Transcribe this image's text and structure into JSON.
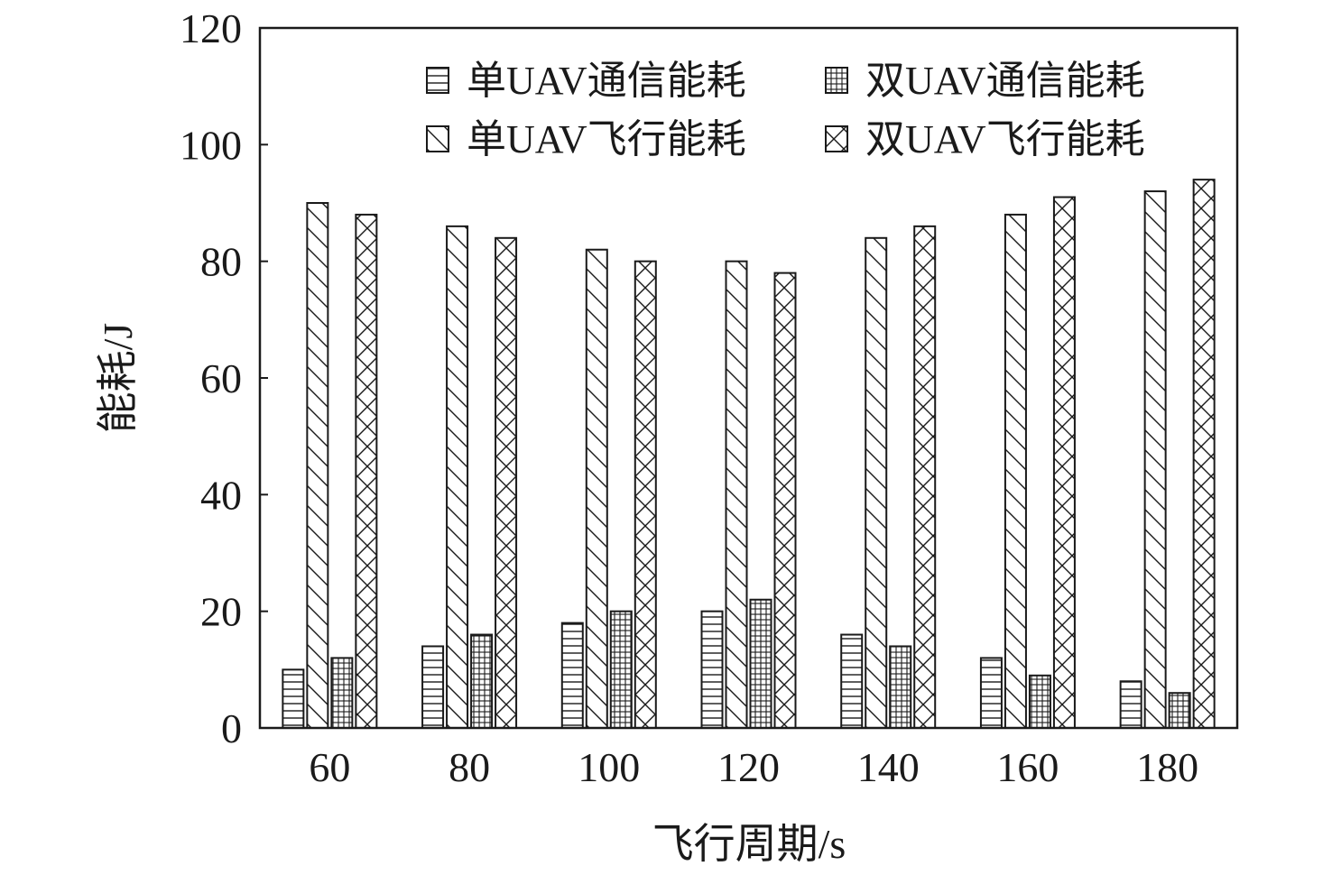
{
  "chart_data": {
    "type": "bar",
    "title": "",
    "xlabel": "飞行周期/s",
    "ylabel": "能耗/J",
    "categories": [
      "60",
      "80",
      "100",
      "120",
      "140",
      "160",
      "180"
    ],
    "ylim": [
      0,
      120
    ],
    "yticks": [
      "0",
      "20",
      "40",
      "60",
      "80",
      "100",
      "120"
    ],
    "grid": false,
    "legend_position": "top-right",
    "series": [
      {
        "name": "单UAV通信能耗",
        "pattern": "horizontal-lines",
        "values": [
          10,
          14,
          18,
          20,
          16,
          12,
          8
        ]
      },
      {
        "name": "单UAV飞行能耗",
        "pattern": "diagonal-lines",
        "values": [
          90,
          86,
          82,
          80,
          84,
          88,
          92
        ]
      },
      {
        "name": "双UAV通信能耗",
        "pattern": "grid",
        "values": [
          12,
          16,
          20,
          22,
          14,
          9,
          6
        ]
      },
      {
        "name": "双UAV飞行能耗",
        "pattern": "cross-hatch",
        "values": [
          88,
          84,
          80,
          78,
          86,
          91,
          94
        ]
      }
    ],
    "legend_order": [
      0,
      2,
      1,
      3
    ],
    "colors": {
      "stroke": "#1a1a1a",
      "fill": "#ffffff"
    }
  }
}
